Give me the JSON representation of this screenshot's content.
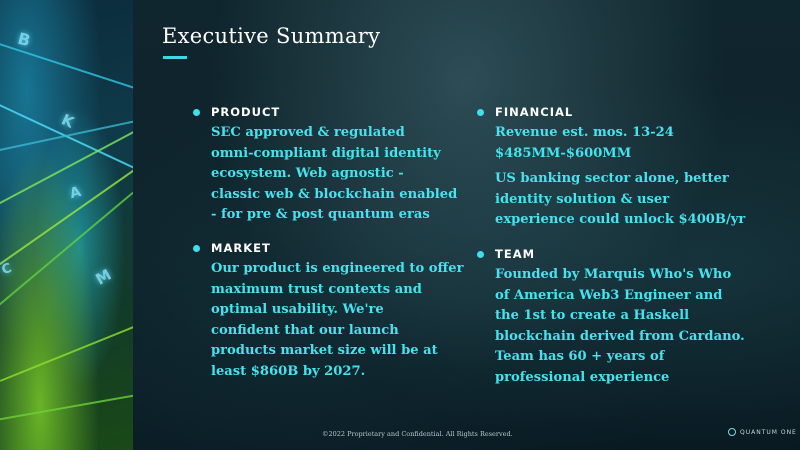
{
  "slide": {
    "title": "Executive Summary",
    "accent_color": "#3fd6e8",
    "text_color": "#46e3ee"
  },
  "sections": [
    {
      "heading": "PRODUCT",
      "lines": [
        "SEC approved & regulated",
        "omni-compliant digital identity",
        "ecosystem. Web agnostic -",
        "classic web & blockchain enabled",
        "- for pre & post quantum eras"
      ]
    },
    {
      "heading": "MARKET",
      "lines": [
        "Our product is engineered to offer",
        "maximum trust contexts and",
        "optimal usability. We're",
        "confident that our launch",
        "products market size will be at",
        "least $860B by 2027."
      ]
    },
    {
      "heading": "FINANCIAL",
      "lines": [
        "Revenue est. mos. 13-24",
        "$485MM-$600MM"
      ],
      "lines2": [
        "US banking sector alone, better",
        "identity solution & user",
        "experience could unlock $400B/yr"
      ]
    },
    {
      "heading": "TEAM",
      "lines": [
        "Founded by Marquis Who's Who",
        "of America Web3 Engineer and",
        "the 1st to create a Haskell",
        "blockchain derived from Cardano.",
        "Team has 60 + years of",
        "professional experience"
      ]
    }
  ],
  "footer": {
    "copyright": "©2022 Proprietary and Confidential. All Rights Reserved.",
    "logo_text": "QUANTUM ONE"
  },
  "decor": {
    "glyphs": [
      "B",
      "K",
      "A",
      "M",
      "C"
    ]
  }
}
